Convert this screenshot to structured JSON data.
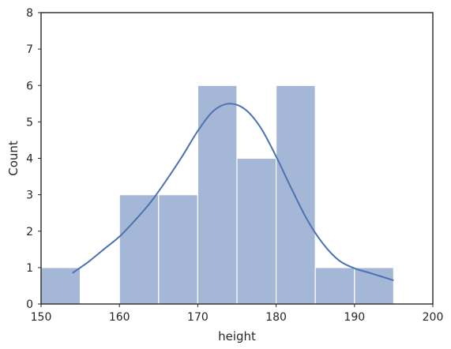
{
  "chart_data": {
    "type": "bar",
    "subtype": "histogram",
    "title": "",
    "xlabel": "height",
    "ylabel": "Count",
    "xlim": [
      150,
      200
    ],
    "ylim": [
      0,
      8
    ],
    "xticks": [
      "150",
      "160",
      "170",
      "180",
      "190",
      "200"
    ],
    "yticks": [
      "0",
      "1",
      "2",
      "3",
      "4",
      "5",
      "6",
      "7",
      "8"
    ],
    "grid": false,
    "legend": "none",
    "bins": [
      {
        "x0": 150,
        "x1": 155,
        "count": 1
      },
      {
        "x0": 155,
        "x1": 160,
        "count": 0
      },
      {
        "x0": 160,
        "x1": 165,
        "count": 3
      },
      {
        "x0": 165,
        "x1": 170,
        "count": 3
      },
      {
        "x0": 170,
        "x1": 175,
        "count": 6
      },
      {
        "x0": 175,
        "x1": 180,
        "count": 4
      },
      {
        "x0": 180,
        "x1": 185,
        "count": 6
      },
      {
        "x0": 185,
        "x1": 190,
        "count": 1
      },
      {
        "x0": 190,
        "x1": 195,
        "count": 1
      }
    ],
    "kde": {
      "x": [
        154,
        156,
        158,
        160,
        162,
        164,
        166,
        168,
        170,
        172,
        174,
        176,
        178,
        180,
        182,
        184,
        186,
        188,
        190,
        192,
        195
      ],
      "y": [
        0.85,
        1.15,
        1.5,
        1.85,
        2.3,
        2.8,
        3.4,
        4.05,
        4.75,
        5.3,
        5.5,
        5.35,
        4.85,
        4.05,
        3.15,
        2.3,
        1.65,
        1.2,
        0.98,
        0.85,
        0.65
      ]
    },
    "colors": {
      "bar": "#a5b7d7",
      "line": "#4c72b0",
      "frame": "#262626"
    }
  }
}
